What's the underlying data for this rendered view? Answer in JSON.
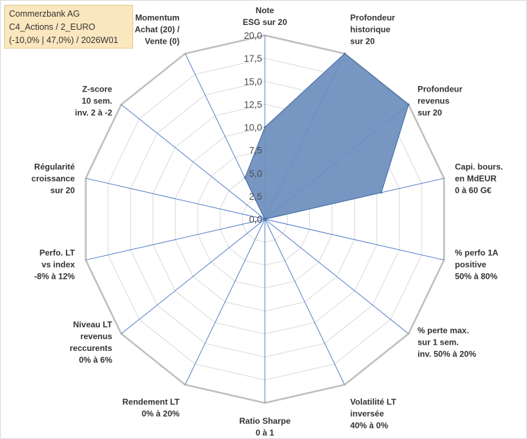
{
  "title_box": {
    "line1": "Commerzbank AG",
    "line2": "C4_Actions / 2_EURO",
    "line3": "(-10,0% | 47,0%) / 2026W01"
  },
  "colors": {
    "fill": "#6b8ebd",
    "stroke": "#4a72a8",
    "grid": "#d9d9d9",
    "outer_ring": "#bfbfbf",
    "spoke": "#4472c4",
    "title_bg": "#fbe7bf"
  },
  "chart_data": {
    "type": "radar",
    "rmin": 0,
    "rmax": 20,
    "grid_rings": 8,
    "tick_labels": [
      "0,0",
      "2,5",
      "5,0",
      "7,5",
      "10,0",
      "12,5",
      "15,0",
      "17,5",
      "20,0"
    ],
    "axes": [
      {
        "label": [
          "Note",
          "ESG sur 20"
        ],
        "value": 10.0
      },
      {
        "label": [
          "Profondeur",
          "historique",
          "sur 20"
        ],
        "value": 20.0
      },
      {
        "label": [
          "Profondeur",
          "revenus",
          "sur 20"
        ],
        "value": 20.0
      },
      {
        "label": [
          "Capi. bours.",
          "en MdEUR",
          "0 à 60 G€"
        ],
        "value": 13.0
      },
      {
        "label": [
          "% perfo 1A",
          "positive",
          "50% à 80%"
        ],
        "value": 0
      },
      {
        "label": [
          "% perte max.",
          "sur 1 sem.",
          "inv. 50% à 20%"
        ],
        "value": 0
      },
      {
        "label": [
          "Volatilité LT",
          "inversée",
          "40% à 0%"
        ],
        "value": 0
      },
      {
        "label": [
          "Ratio Sharpe",
          "0 à 1"
        ],
        "value": 0
      },
      {
        "label": [
          "Rendement LT",
          "0% à 20%"
        ],
        "value": 0
      },
      {
        "label": [
          "Niveau LT",
          "revenus",
          "reccurents",
          "0% à 6%"
        ],
        "value": 0
      },
      {
        "label": [
          "Perfo. LT",
          "vs index",
          "-8% à 12%"
        ],
        "value": 0
      },
      {
        "label": [
          "Régularité",
          "croissance",
          "sur 20"
        ],
        "value": 0
      },
      {
        "label": [
          "Z-score",
          "10 sem.",
          "inv. 2 à -2"
        ],
        "value": 0
      },
      {
        "label": [
          "Momentum",
          "Achat (20) /",
          "Vente (0)"
        ],
        "value": 5.0
      }
    ]
  }
}
